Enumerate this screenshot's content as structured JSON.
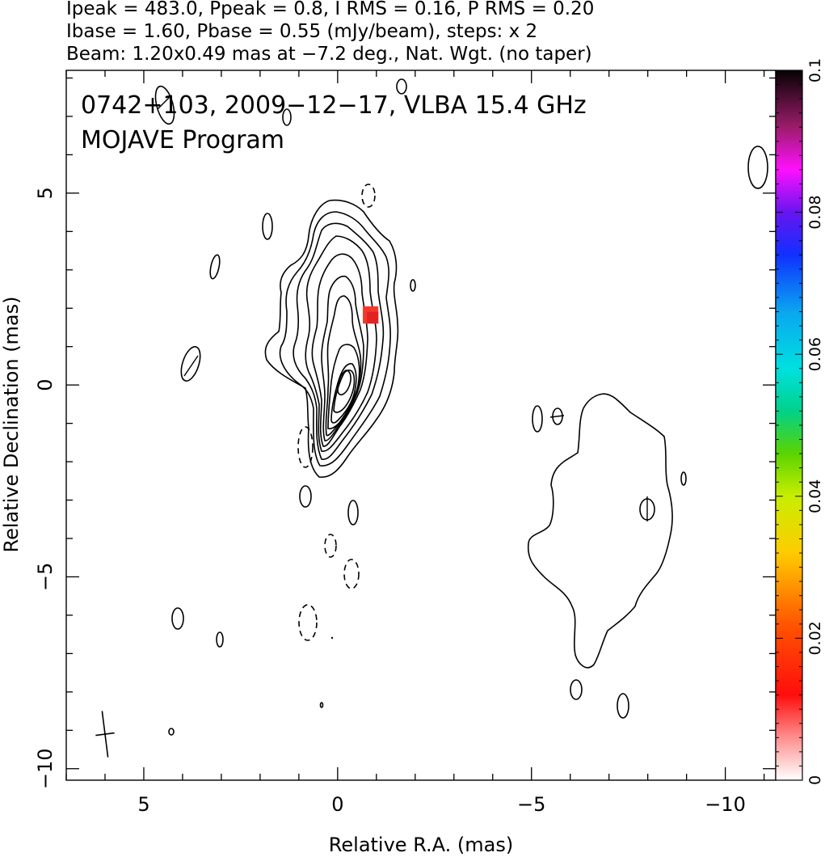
{
  "header": {
    "line1": "Ipeak = 483.0, Ppeak = 0.8, I RMS = 0.16, P RMS = 0.20",
    "line2": "Ibase = 1.60, Pbase = 0.55 (mJy/beam), steps: x 2",
    "line3": "Beam: 1.20x0.49 mas at −7.2 deg., Nat. Wgt. (no taper)"
  },
  "chart_data": {
    "type": "contour",
    "title": "0742+103, 2009−12−17, VLBA 15.4 GHz",
    "subtitle": "MOJAVE Program",
    "xlabel": "Relative R.A. (mas)",
    "ylabel": "Relative Declination (mas)",
    "xlim": [
      7,
      -11.3
    ],
    "ylim": [
      -10.3,
      8.2
    ],
    "x_ticks": [
      {
        "value": 5,
        "label": "5"
      },
      {
        "value": 0,
        "label": "0"
      },
      {
        "value": -5,
        "label": "−5"
      },
      {
        "value": -10,
        "label": "−10"
      }
    ],
    "y_ticks": [
      {
        "value": 5,
        "label": "5"
      },
      {
        "value": 0,
        "label": "0"
      },
      {
        "value": -5,
        "label": "−5"
      },
      {
        "value": -10,
        "label": "−10"
      }
    ],
    "intensity_peak_mJy_per_beam": 483.0,
    "polarization_peak_mJy_per_beam": 0.8,
    "contour_base_mJy_per_beam": 1.6,
    "contour_step_factor": 2,
    "core_position_mas": [
      0,
      0.2
    ],
    "polarized_patch": {
      "x_range": [
        -0.65,
        -1.05
      ],
      "y_range": [
        1.6,
        2.05
      ],
      "color": "#f23a2a"
    },
    "beam": {
      "major_mas": 1.2,
      "minor_mas": 0.49,
      "pa_deg": -7.2,
      "center_mas": [
        6.0,
        -9.1
      ]
    },
    "colorbar": {
      "min": 0,
      "max": 0.1,
      "ticks": [
        {
          "value": 0,
          "label": "0"
        },
        {
          "value": 0.02,
          "label": "0.02"
        },
        {
          "value": 0.04,
          "label": "0.04"
        },
        {
          "value": 0.06,
          "label": "0.06"
        },
        {
          "value": 0.08,
          "label": "0.08"
        },
        {
          "value": 0.1,
          "label": "0.1"
        }
      ]
    }
  }
}
